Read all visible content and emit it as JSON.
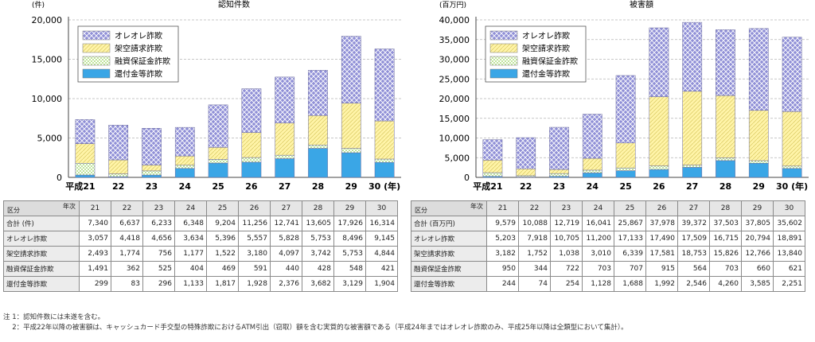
{
  "chart_data": [
    {
      "type": "bar",
      "stacked": true,
      "title": "認知件数",
      "unit": "(件)",
      "categories": [
        "平成21",
        "22",
        "23",
        "24",
        "25",
        "26",
        "27",
        "28",
        "29",
        "30 (年)"
      ],
      "ylim": [
        0,
        20000
      ],
      "yticks": [
        "0",
        "5,000",
        "10,000",
        "15,000",
        "20,000"
      ],
      "legend": [
        "オレオレ詐欺",
        "架空請求詐欺",
        "融資保証金詐欺",
        "還付金等詐欺"
      ],
      "legend_position": "top-left",
      "grid": true,
      "series": [
        {
          "name": "還付金等詐欺",
          "values": [
            299,
            83,
            296,
            1133,
            1817,
            1928,
            2376,
            3682,
            3129,
            1904
          ]
        },
        {
          "name": "融資保証金詐欺",
          "values": [
            1491,
            362,
            525,
            404,
            469,
            591,
            440,
            428,
            548,
            421
          ]
        },
        {
          "name": "架空請求詐欺",
          "values": [
            2493,
            1774,
            756,
            1177,
            1522,
            3180,
            4097,
            3742,
            5753,
            4844
          ]
        },
        {
          "name": "オレオレ詐欺",
          "values": [
            3057,
            4418,
            4656,
            3634,
            5396,
            5557,
            5828,
            5753,
            8496,
            9145
          ]
        }
      ]
    },
    {
      "type": "bar",
      "stacked": true,
      "title": "被害額",
      "unit": "(百万円)",
      "categories": [
        "平成21",
        "22",
        "23",
        "24",
        "25",
        "26",
        "27",
        "28",
        "29",
        "30 (年)"
      ],
      "ylim": [
        0,
        40000
      ],
      "yticks": [
        "0",
        "5,000",
        "10,000",
        "15,000",
        "20,000",
        "25,000",
        "30,000",
        "35,000",
        "40,000"
      ],
      "legend": [
        "オレオレ詐欺",
        "架空請求詐欺",
        "融資保証金詐欺",
        "還付金等詐欺"
      ],
      "legend_position": "top-left",
      "grid": true,
      "series": [
        {
          "name": "還付金等詐欺",
          "values": [
            244,
            74,
            254,
            1128,
            1688,
            1992,
            2546,
            4260,
            3585,
            2251
          ]
        },
        {
          "name": "融資保証金詐欺",
          "values": [
            950,
            344,
            722,
            703,
            707,
            915,
            564,
            703,
            660,
            621
          ]
        },
        {
          "name": "架空請求詐欺",
          "values": [
            3182,
            1752,
            1038,
            3010,
            6339,
            17581,
            18753,
            15826,
            12766,
            13840
          ]
        },
        {
          "name": "オレオレ詐欺",
          "values": [
            5203,
            7918,
            10705,
            11200,
            17133,
            17490,
            17509,
            16715,
            20794,
            18891
          ]
        }
      ]
    }
  ],
  "colors": {
    "oreore": "#8f8fd6",
    "kakuu": "#fff4a8",
    "yuushi": "#bfe39a",
    "kanpu": "#3aa6e6"
  },
  "tables": {
    "left": {
      "corner_top": "年次",
      "corner_bottom": "区分",
      "years": [
        "21",
        "22",
        "23",
        "24",
        "25",
        "26",
        "27",
        "28",
        "29",
        "30"
      ],
      "rows": [
        {
          "label": "合計 (件)",
          "values": [
            "7,340",
            "6,637",
            "6,233",
            "6,348",
            "9,204",
            "11,256",
            "12,741",
            "13,605",
            "17,926",
            "16,314"
          ]
        },
        {
          "label": "オレオレ詐欺",
          "values": [
            "3,057",
            "4,418",
            "4,656",
            "3,634",
            "5,396",
            "5,557",
            "5,828",
            "5,753",
            "8,496",
            "9,145"
          ]
        },
        {
          "label": "架空請求詐欺",
          "values": [
            "2,493",
            "1,774",
            "756",
            "1,177",
            "1,522",
            "3,180",
            "4,097",
            "3,742",
            "5,753",
            "4,844"
          ]
        },
        {
          "label": "融資保証金詐欺",
          "values": [
            "1,491",
            "362",
            "525",
            "404",
            "469",
            "591",
            "440",
            "428",
            "548",
            "421"
          ]
        },
        {
          "label": "還付金等詐欺",
          "values": [
            "299",
            "83",
            "296",
            "1,133",
            "1,817",
            "1,928",
            "2,376",
            "3,682",
            "3,129",
            "1,904"
          ]
        }
      ]
    },
    "right": {
      "corner_top": "年次",
      "corner_bottom": "区分",
      "years": [
        "21",
        "22",
        "23",
        "24",
        "25",
        "26",
        "27",
        "28",
        "29",
        "30"
      ],
      "rows": [
        {
          "label": "合計 (百万円)",
          "values": [
            "9,579",
            "10,088",
            "12,719",
            "16,041",
            "25,867",
            "37,978",
            "39,372",
            "37,503",
            "37,805",
            "35,602"
          ]
        },
        {
          "label": "オレオレ詐欺",
          "values": [
            "5,203",
            "7,918",
            "10,705",
            "11,200",
            "17,133",
            "17,490",
            "17,509",
            "16,715",
            "20,794",
            "18,891"
          ]
        },
        {
          "label": "架空請求詐欺",
          "values": [
            "3,182",
            "1,752",
            "1,038",
            "3,010",
            "6,339",
            "17,581",
            "18,753",
            "15,826",
            "12,766",
            "13,840"
          ]
        },
        {
          "label": "融資保証金詐欺",
          "values": [
            "950",
            "344",
            "722",
            "703",
            "707",
            "915",
            "564",
            "703",
            "660",
            "621"
          ]
        },
        {
          "label": "還付金等詐欺",
          "values": [
            "244",
            "74",
            "254",
            "1,128",
            "1,688",
            "1,992",
            "2,546",
            "4,260",
            "3,585",
            "2,251"
          ]
        }
      ]
    }
  },
  "notes": {
    "note1": "注 1：認知件数には未遂を含む。",
    "note2": "　 2：平成22年以降の被害額は、キャッシュカード手交型の特殊詐欺におけるATM引出（窃取）額を含む実質的な被害額である（平成24年まではオレオレ詐欺のみ、平成25年以降は全類型において集計）。"
  }
}
